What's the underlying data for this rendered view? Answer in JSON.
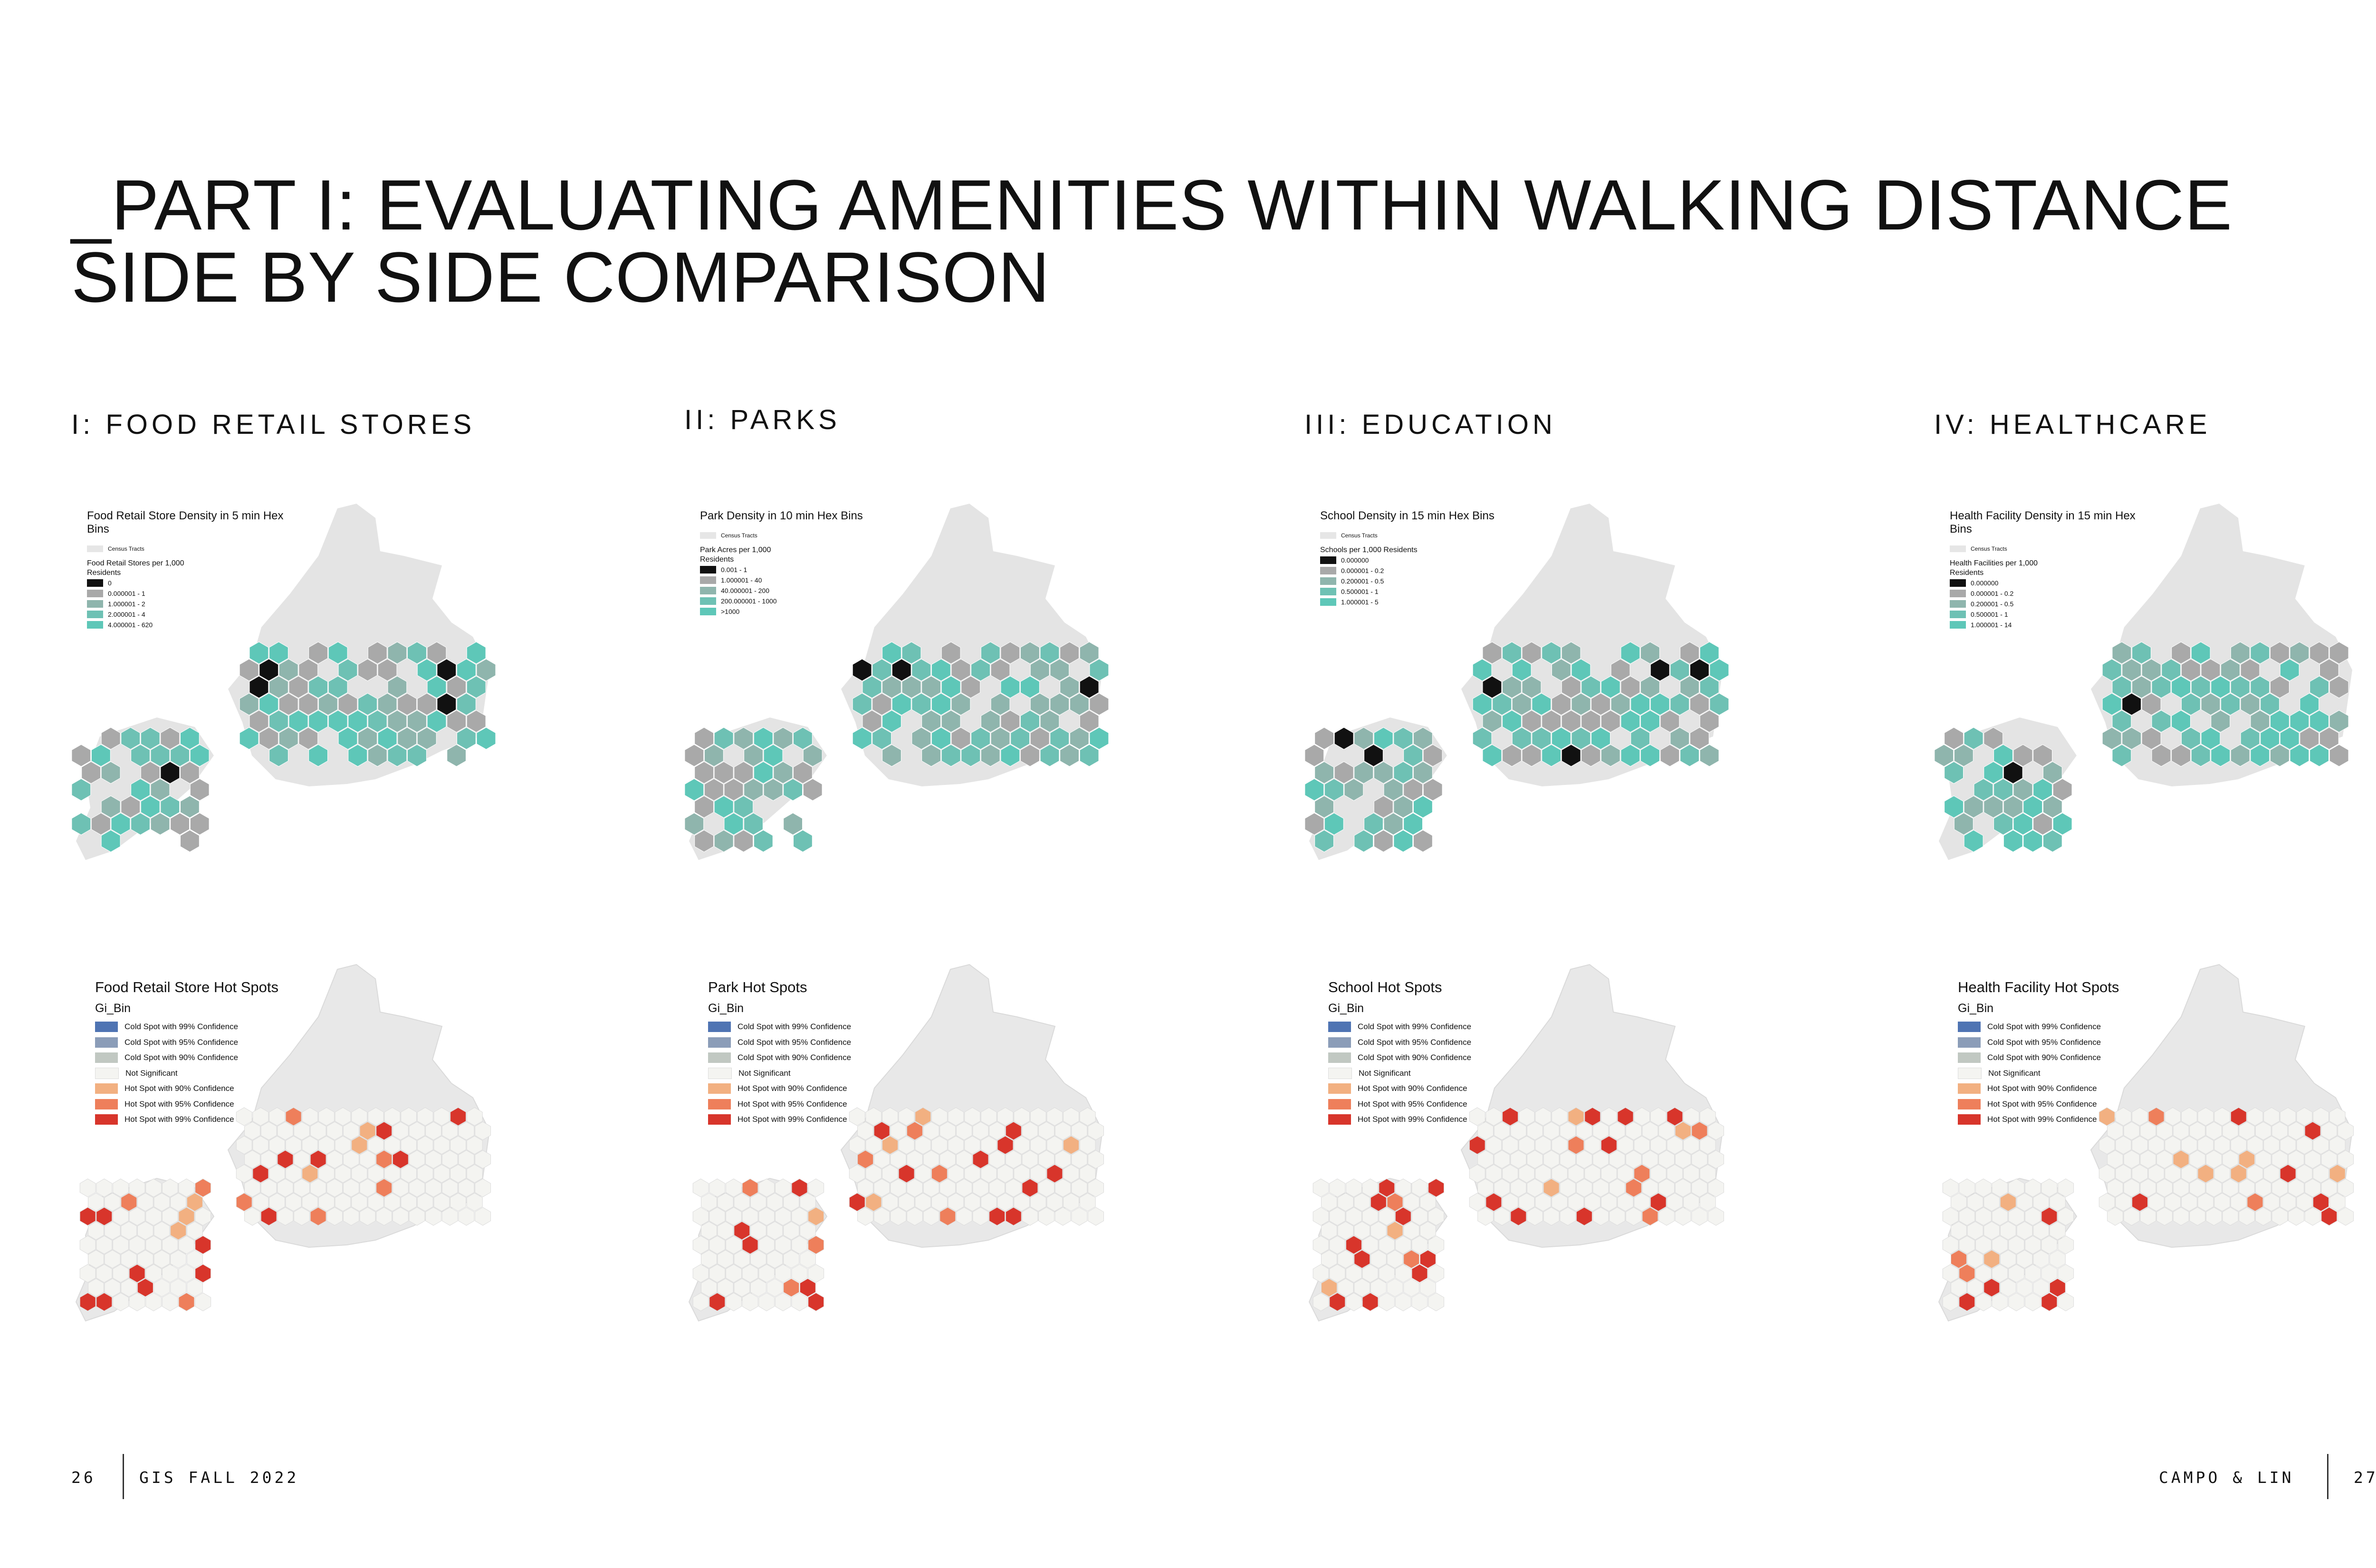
{
  "title": {
    "line1": "_PART I: EVALUATING AMENITIES WITHIN WALKING DISTANCE",
    "line2": "SIDE BY SIDE COMPARISON"
  },
  "sections": [
    {
      "heading": "I: FOOD RETAIL STORES",
      "density": {
        "title": "Food Retail Store Density in 5 min Hex Bins",
        "census": "Census Tracts",
        "subtitle": "Food Retail Stores per 1,000 Residents",
        "classes": [
          "0",
          "0.000001 - 1",
          "1.000001 - 2",
          "2.000001 - 4",
          "4.000001 - 620"
        ]
      },
      "hotspot": {
        "title": "Food Retail Store Hot Spots"
      }
    },
    {
      "heading": "II: PARKS",
      "density": {
        "title": "Park Density  in 10 min Hex Bins",
        "census": "Census Tracts",
        "subtitle": "Park Acres per 1,000 Residents",
        "classes": [
          "0.001 - 1",
          "1.000001 - 40",
          "40.000001 - 200",
          "200.000001 - 1000",
          ">1000"
        ]
      },
      "hotspot": {
        "title": "Park Hot Spots"
      }
    },
    {
      "heading": "III: EDUCATION",
      "density": {
        "title": "School Density in 15 min Hex Bins",
        "census": "Census Tracts",
        "subtitle": "Schools per 1,000 Residents",
        "classes": [
          "0.000000",
          "0.000001 - 0.2",
          "0.200001 - 0.5",
          "0.500001 - 1",
          "1.000001 - 5"
        ]
      },
      "hotspot": {
        "title": "School Hot Spots"
      }
    },
    {
      "heading": "IV: HEALTHCARE",
      "density": {
        "title": "Health Facility Density in 15 min Hex Bins",
        "census": "Census Tracts",
        "subtitle": "Health Facilities per 1,000 Residents",
        "classes": [
          "0.000000",
          "0.000001 - 0.2",
          "0.200001 - 0.5",
          "0.500001 - 1",
          "1.000001 - 14"
        ]
      },
      "hotspot": {
        "title": "Health Facility Hot Spots"
      }
    }
  ],
  "density_colors": [
    "#111111",
    "#a9a9a9",
    "#8fb5ad",
    "#6ec1b4",
    "#5ec7b8"
  ],
  "gi": {
    "label": "Gi_Bin",
    "classes": [
      "Cold Spot with 99% Confidence",
      "Cold Spot with 95% Confidence",
      "Cold Spot with 90% Confidence",
      "Not Significant",
      "Hot Spot with 90% Confidence",
      "Hot Spot with 95% Confidence",
      "Hot Spot with 99% Confidence"
    ],
    "colors": [
      "#4f74b3",
      "#8b9db8",
      "#c1c8c2",
      "#f4f4f1",
      "#f2b081",
      "#ee7f5b",
      "#d8352b"
    ]
  },
  "footer": {
    "left_page": "26",
    "left_label": "GIS FALL 2022",
    "right_label": "CAMPO & LIN",
    "right_page": "27"
  }
}
